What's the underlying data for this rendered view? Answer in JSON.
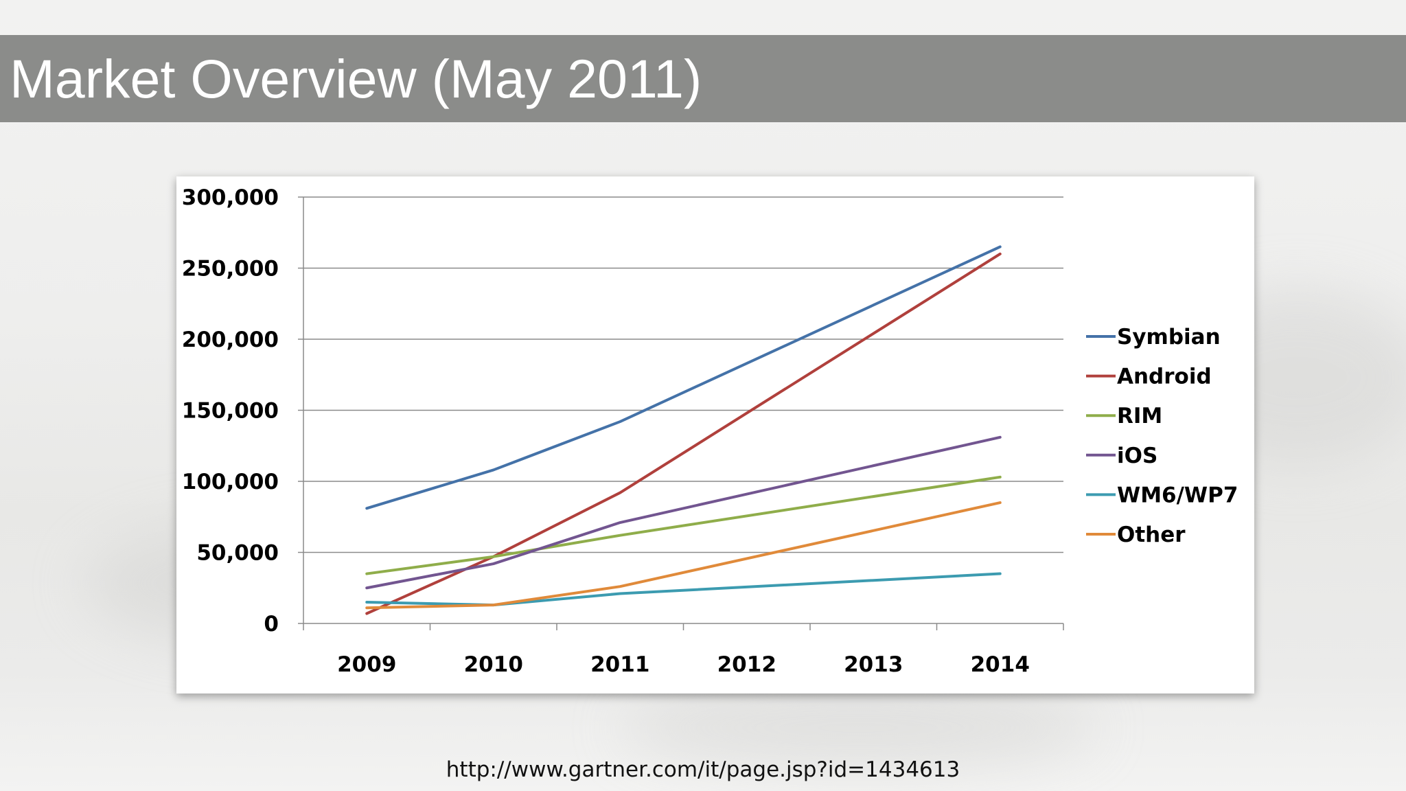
{
  "slide": {
    "title": "Market Overview (May 2011)",
    "source_url": "http://www.gartner.com/it/page.jsp?id=1434613"
  },
  "colors": {
    "title_bar": "#8b8c8a",
    "gridline": "#8a8a8a"
  },
  "chart_data": {
    "type": "line",
    "title": "",
    "xlabel": "",
    "ylabel": "",
    "x": [
      "2009",
      "2010",
      "2011",
      "2012",
      "2013",
      "2014"
    ],
    "ylim": [
      0,
      300000
    ],
    "yticks": [
      0,
      50000,
      100000,
      150000,
      200000,
      250000,
      300000
    ],
    "ytick_labels": [
      "0",
      "50,000",
      "100,000",
      "150,000",
      "200,000",
      "250,000",
      "300,000"
    ],
    "grid": true,
    "legend_position": "right",
    "series": [
      {
        "name": "Symbian",
        "color": "#4472a8",
        "values": [
          81000,
          108000,
          142000,
          null,
          null,
          265000
        ]
      },
      {
        "name": "Android",
        "color": "#b0403c",
        "values": [
          7000,
          47000,
          92000,
          null,
          null,
          260000
        ]
      },
      {
        "name": "RIM",
        "color": "#8fad4a",
        "values": [
          35000,
          47000,
          62000,
          null,
          null,
          103000
        ]
      },
      {
        "name": "iOS",
        "color": "#725590",
        "values": [
          25000,
          42000,
          71000,
          null,
          null,
          131000
        ]
      },
      {
        "name": "WM6/WP7",
        "color": "#3c9bb0",
        "values": [
          15000,
          13000,
          21000,
          null,
          null,
          35000
        ]
      },
      {
        "name": "Other",
        "color": "#e08a3a",
        "values": [
          11000,
          13000,
          26000,
          null,
          null,
          85000
        ]
      }
    ]
  }
}
